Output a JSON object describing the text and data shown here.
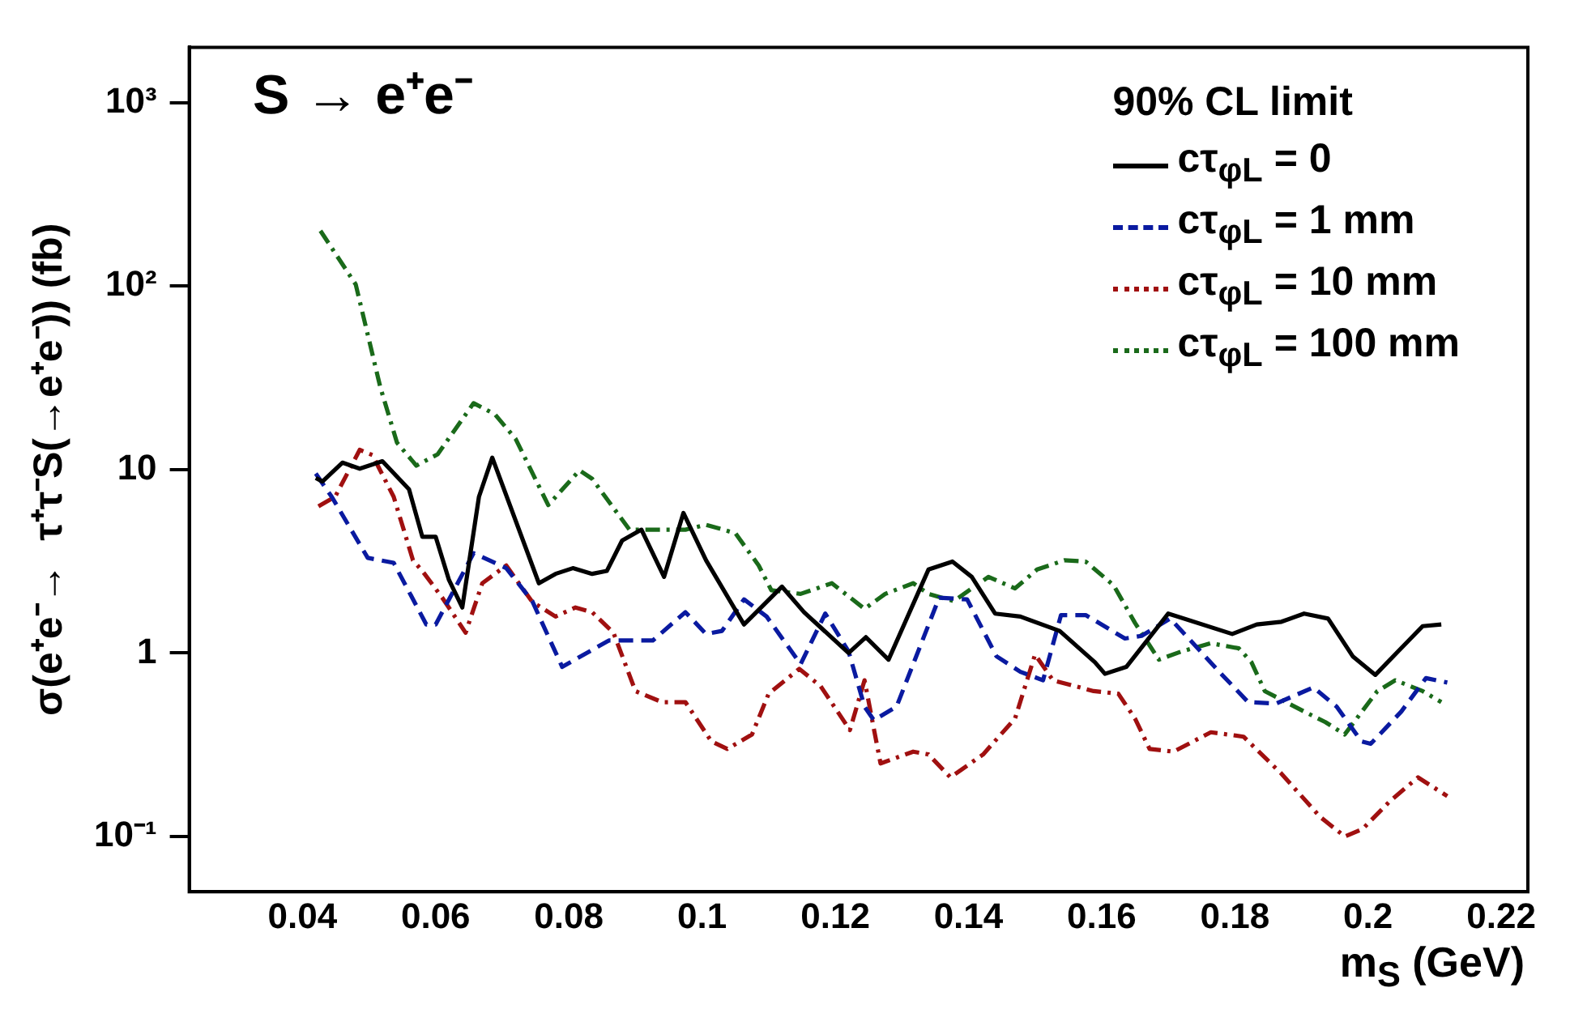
{
  "chart_data": {
    "type": "line",
    "title": "S → e⁺e⁻",
    "xlabel": "m$_{S}$ (GeV)",
    "ylabel": "σ(e⁺e⁻→  τ⁺τ⁻S(→e⁺e⁻)) (fb)",
    "legend_title": "90% CL limit",
    "legend": "top right",
    "log": "y",
    "grid": false,
    "marker": "none",
    "xlim": [
      0.023,
      0.224
    ],
    "xticks": [
      0.04,
      0.06,
      0.08,
      0.1,
      0.12,
      0.14,
      0.16,
      0.18,
      0.2,
      0.22
    ],
    "ylim": [
      0.05,
      2000
    ],
    "yticks": [
      {
        "value": 0.1,
        "label": "10⁻¹"
      },
      1,
      10,
      {
        "value": 100,
        "label": "10²"
      },
      {
        "value": 1000,
        "label": "10³"
      }
    ],
    "series": [
      {
        "name": "cτ$_{φL}$ = 0",
        "color": "#000000",
        "line_style": "solid",
        "x": [
          0.042,
          0.043,
          0.046,
          0.0486,
          0.052,
          0.056,
          0.058,
          0.06,
          0.062,
          0.064,
          0.0665,
          0.0685,
          0.0755,
          0.078,
          0.0806,
          0.0835,
          0.0857,
          0.088,
          0.0909,
          0.0943,
          0.0972,
          0.1006,
          0.1063,
          0.112,
          0.1153,
          0.122,
          0.1246,
          0.128,
          0.134,
          0.1376,
          0.1405,
          0.144,
          0.1478,
          0.1537,
          0.159,
          0.1605,
          0.1637,
          0.17,
          0.1796,
          0.1833,
          0.187,
          0.1904,
          0.194,
          0.1977,
          0.2011,
          0.2045,
          0.2082,
          0.211
        ],
        "values": [
          9.0,
          8.6,
          10.9,
          10.1,
          11.1,
          7.8,
          4.3,
          4.3,
          2.5,
          1.77,
          7.1,
          11.6,
          2.4,
          2.7,
          2.9,
          2.7,
          2.8,
          4.1,
          4.7,
          2.6,
          5.8,
          3.2,
          1.43,
          2.3,
          1.67,
          1.0,
          1.22,
          0.92,
          2.85,
          3.15,
          2.6,
          1.64,
          1.58,
          1.32,
          0.89,
          0.77,
          0.84,
          1.64,
          1.27,
          1.43,
          1.48,
          1.64,
          1.54,
          0.96,
          0.76,
          1.02,
          1.4,
          1.43
        ]
      },
      {
        "name": "cτ$_{φL}$ = 1 mm",
        "color": "#0a1aa0",
        "line_style": "dashed",
        "x": [
          0.042,
          0.0444,
          0.0498,
          0.0537,
          0.0586,
          0.06,
          0.0657,
          0.0706,
          0.0745,
          0.079,
          0.086,
          0.0926,
          0.0975,
          0.1006,
          0.103,
          0.1063,
          0.1097,
          0.1148,
          0.1185,
          0.122,
          0.1244,
          0.1258,
          0.1292,
          0.1356,
          0.1398,
          0.1442,
          0.1478,
          0.1512,
          0.1539,
          0.1576,
          0.1635,
          0.166,
          0.1703,
          0.1781,
          0.182,
          0.1862,
          0.1918,
          0.1953,
          0.199,
          0.2004,
          0.205,
          0.2087,
          0.2119
        ],
        "values": [
          9.5,
          7.1,
          3.3,
          3.1,
          1.43,
          1.43,
          3.5,
          2.9,
          1.92,
          0.84,
          1.17,
          1.17,
          1.67,
          1.27,
          1.32,
          1.96,
          1.58,
          0.87,
          1.64,
          1.02,
          0.51,
          0.43,
          0.51,
          2.0,
          1.96,
          0.96,
          0.79,
          0.71,
          1.61,
          1.61,
          1.2,
          1.24,
          1.54,
          0.76,
          0.54,
          0.53,
          0.65,
          0.51,
          0.33,
          0.32,
          0.48,
          0.73,
          0.69
        ]
      },
      {
        "name": "cτ$_{φL}$ = 10 mm",
        "color": "#a01010",
        "line_style": "dotted",
        "x": [
          0.0424,
          0.0449,
          0.0486,
          0.0505,
          0.0537,
          0.0566,
          0.058,
          0.061,
          0.0645,
          0.067,
          0.0706,
          0.0745,
          0.078,
          0.081,
          0.0835,
          0.0867,
          0.09,
          0.094,
          0.0975,
          0.1014,
          0.1038,
          0.1075,
          0.11,
          0.1146,
          0.1178,
          0.1222,
          0.1244,
          0.1268,
          0.1317,
          0.134,
          0.1373,
          0.1422,
          0.147,
          0.15,
          0.1527,
          0.1588,
          0.1625,
          0.165,
          0.1672,
          0.1708,
          0.1764,
          0.1813,
          0.187,
          0.1928,
          0.1965,
          0.1992,
          0.2033,
          0.2075,
          0.2119
        ],
        "values": [
          6.3,
          7.1,
          12.8,
          12.0,
          7.1,
          3.2,
          2.8,
          2.0,
          1.29,
          2.4,
          3.0,
          1.9,
          1.58,
          1.77,
          1.67,
          1.29,
          0.62,
          0.54,
          0.54,
          0.33,
          0.3,
          0.36,
          0.6,
          0.82,
          0.66,
          0.38,
          0.71,
          0.25,
          0.29,
          0.28,
          0.21,
          0.28,
          0.44,
          0.98,
          0.71,
          0.62,
          0.6,
          0.44,
          0.3,
          0.29,
          0.37,
          0.35,
          0.22,
          0.128,
          0.1,
          0.11,
          0.156,
          0.21,
          0.166
        ]
      },
      {
        "name": "cτ$_{φL}$ = 100 mm",
        "color": "#1a6a1a",
        "line_style": "dotted",
        "x": [
          0.0427,
          0.048,
          0.0517,
          0.0542,
          0.0571,
          0.0603,
          0.0657,
          0.0689,
          0.072,
          0.0769,
          0.0816,
          0.0835,
          0.0891,
          0.0926,
          0.0975,
          0.1006,
          0.105,
          0.1085,
          0.1104,
          0.1148,
          0.1195,
          0.1244,
          0.1275,
          0.1317,
          0.134,
          0.1378,
          0.143,
          0.147,
          0.1503,
          0.1544,
          0.1576,
          0.1618,
          0.165,
          0.1686,
          0.172,
          0.1764,
          0.1806,
          0.1825,
          0.1845,
          0.1904,
          0.1936,
          0.1965,
          0.2014,
          0.2041,
          0.2082,
          0.211
        ],
        "values": [
          200,
          102,
          28,
          14,
          10.5,
          12.1,
          23,
          20,
          14.7,
          6.4,
          9.9,
          8.9,
          4.7,
          4.7,
          4.7,
          5.0,
          4.5,
          3.0,
          2.2,
          2.1,
          2.4,
          1.74,
          2.1,
          2.4,
          2.1,
          1.92,
          2.6,
          2.25,
          2.85,
          3.2,
          3.15,
          2.34,
          1.46,
          0.92,
          1.02,
          1.13,
          1.06,
          0.89,
          0.62,
          0.48,
          0.42,
          0.36,
          0.62,
          0.71,
          0.62,
          0.54
        ]
      }
    ]
  }
}
